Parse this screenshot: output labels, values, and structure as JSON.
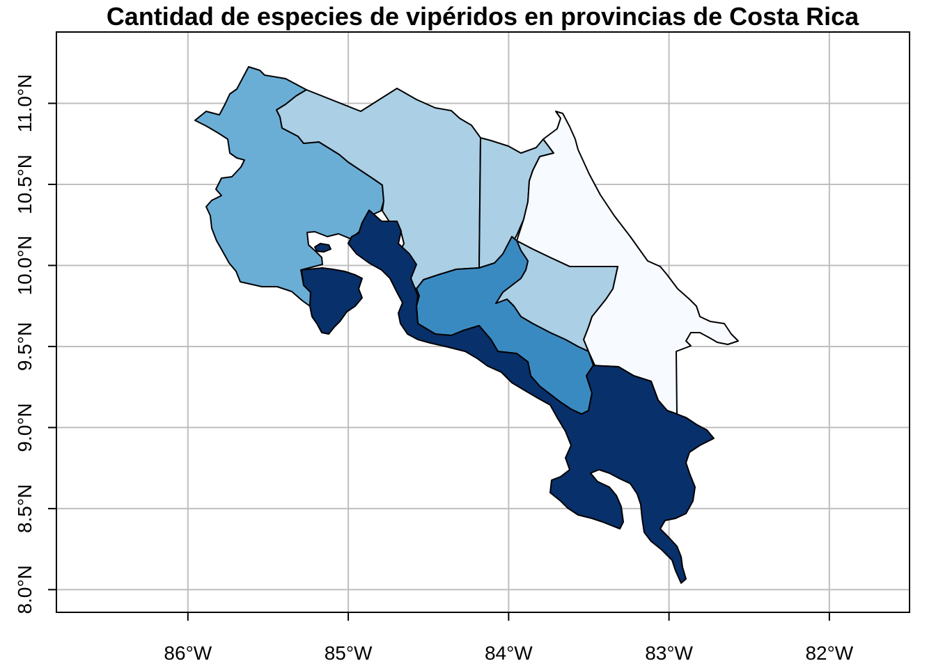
{
  "title": "Cantidad de especies de vipéridos en provincias de Costa Rica",
  "map": {
    "lon_range": [
      -86.82,
      -81.5
    ],
    "lat_range": [
      7.86,
      11.44
    ],
    "lon_ticks": [
      {
        "value": -86,
        "label": "86°W"
      },
      {
        "value": -85,
        "label": "85°W"
      },
      {
        "value": -84,
        "label": "84°W"
      },
      {
        "value": -83,
        "label": "83°W"
      },
      {
        "value": -82,
        "label": "82°W"
      }
    ],
    "lat_ticks": [
      {
        "value": 8.0,
        "label": "8.0°N"
      },
      {
        "value": 8.5,
        "label": "8.5°N"
      },
      {
        "value": 9.0,
        "label": "9.0°N"
      },
      {
        "value": 9.5,
        "label": "9.5°N"
      },
      {
        "value": 10.0,
        "label": "10.0°N"
      },
      {
        "value": 10.5,
        "label": "10.5°N"
      },
      {
        "value": 11.0,
        "label": "11.0°N"
      }
    ],
    "grid": true,
    "palette": [
      "#f7fbff",
      "#abcfe5",
      "#6aaed6",
      "#3a8ac2",
      "#08306b"
    ],
    "provinces": [
      {
        "id": "guanacaste",
        "color": "#6aaed6"
      },
      {
        "id": "alajuela",
        "color": "#abcfe5"
      },
      {
        "id": "heredia",
        "color": "#abcfe5"
      },
      {
        "id": "limon",
        "color": "#f7fbff"
      },
      {
        "id": "cartago",
        "color": "#abcfe5"
      },
      {
        "id": "san-jose",
        "color": "#3a8ac2"
      },
      {
        "id": "puntarenas",
        "color": "#08306b"
      }
    ]
  }
}
